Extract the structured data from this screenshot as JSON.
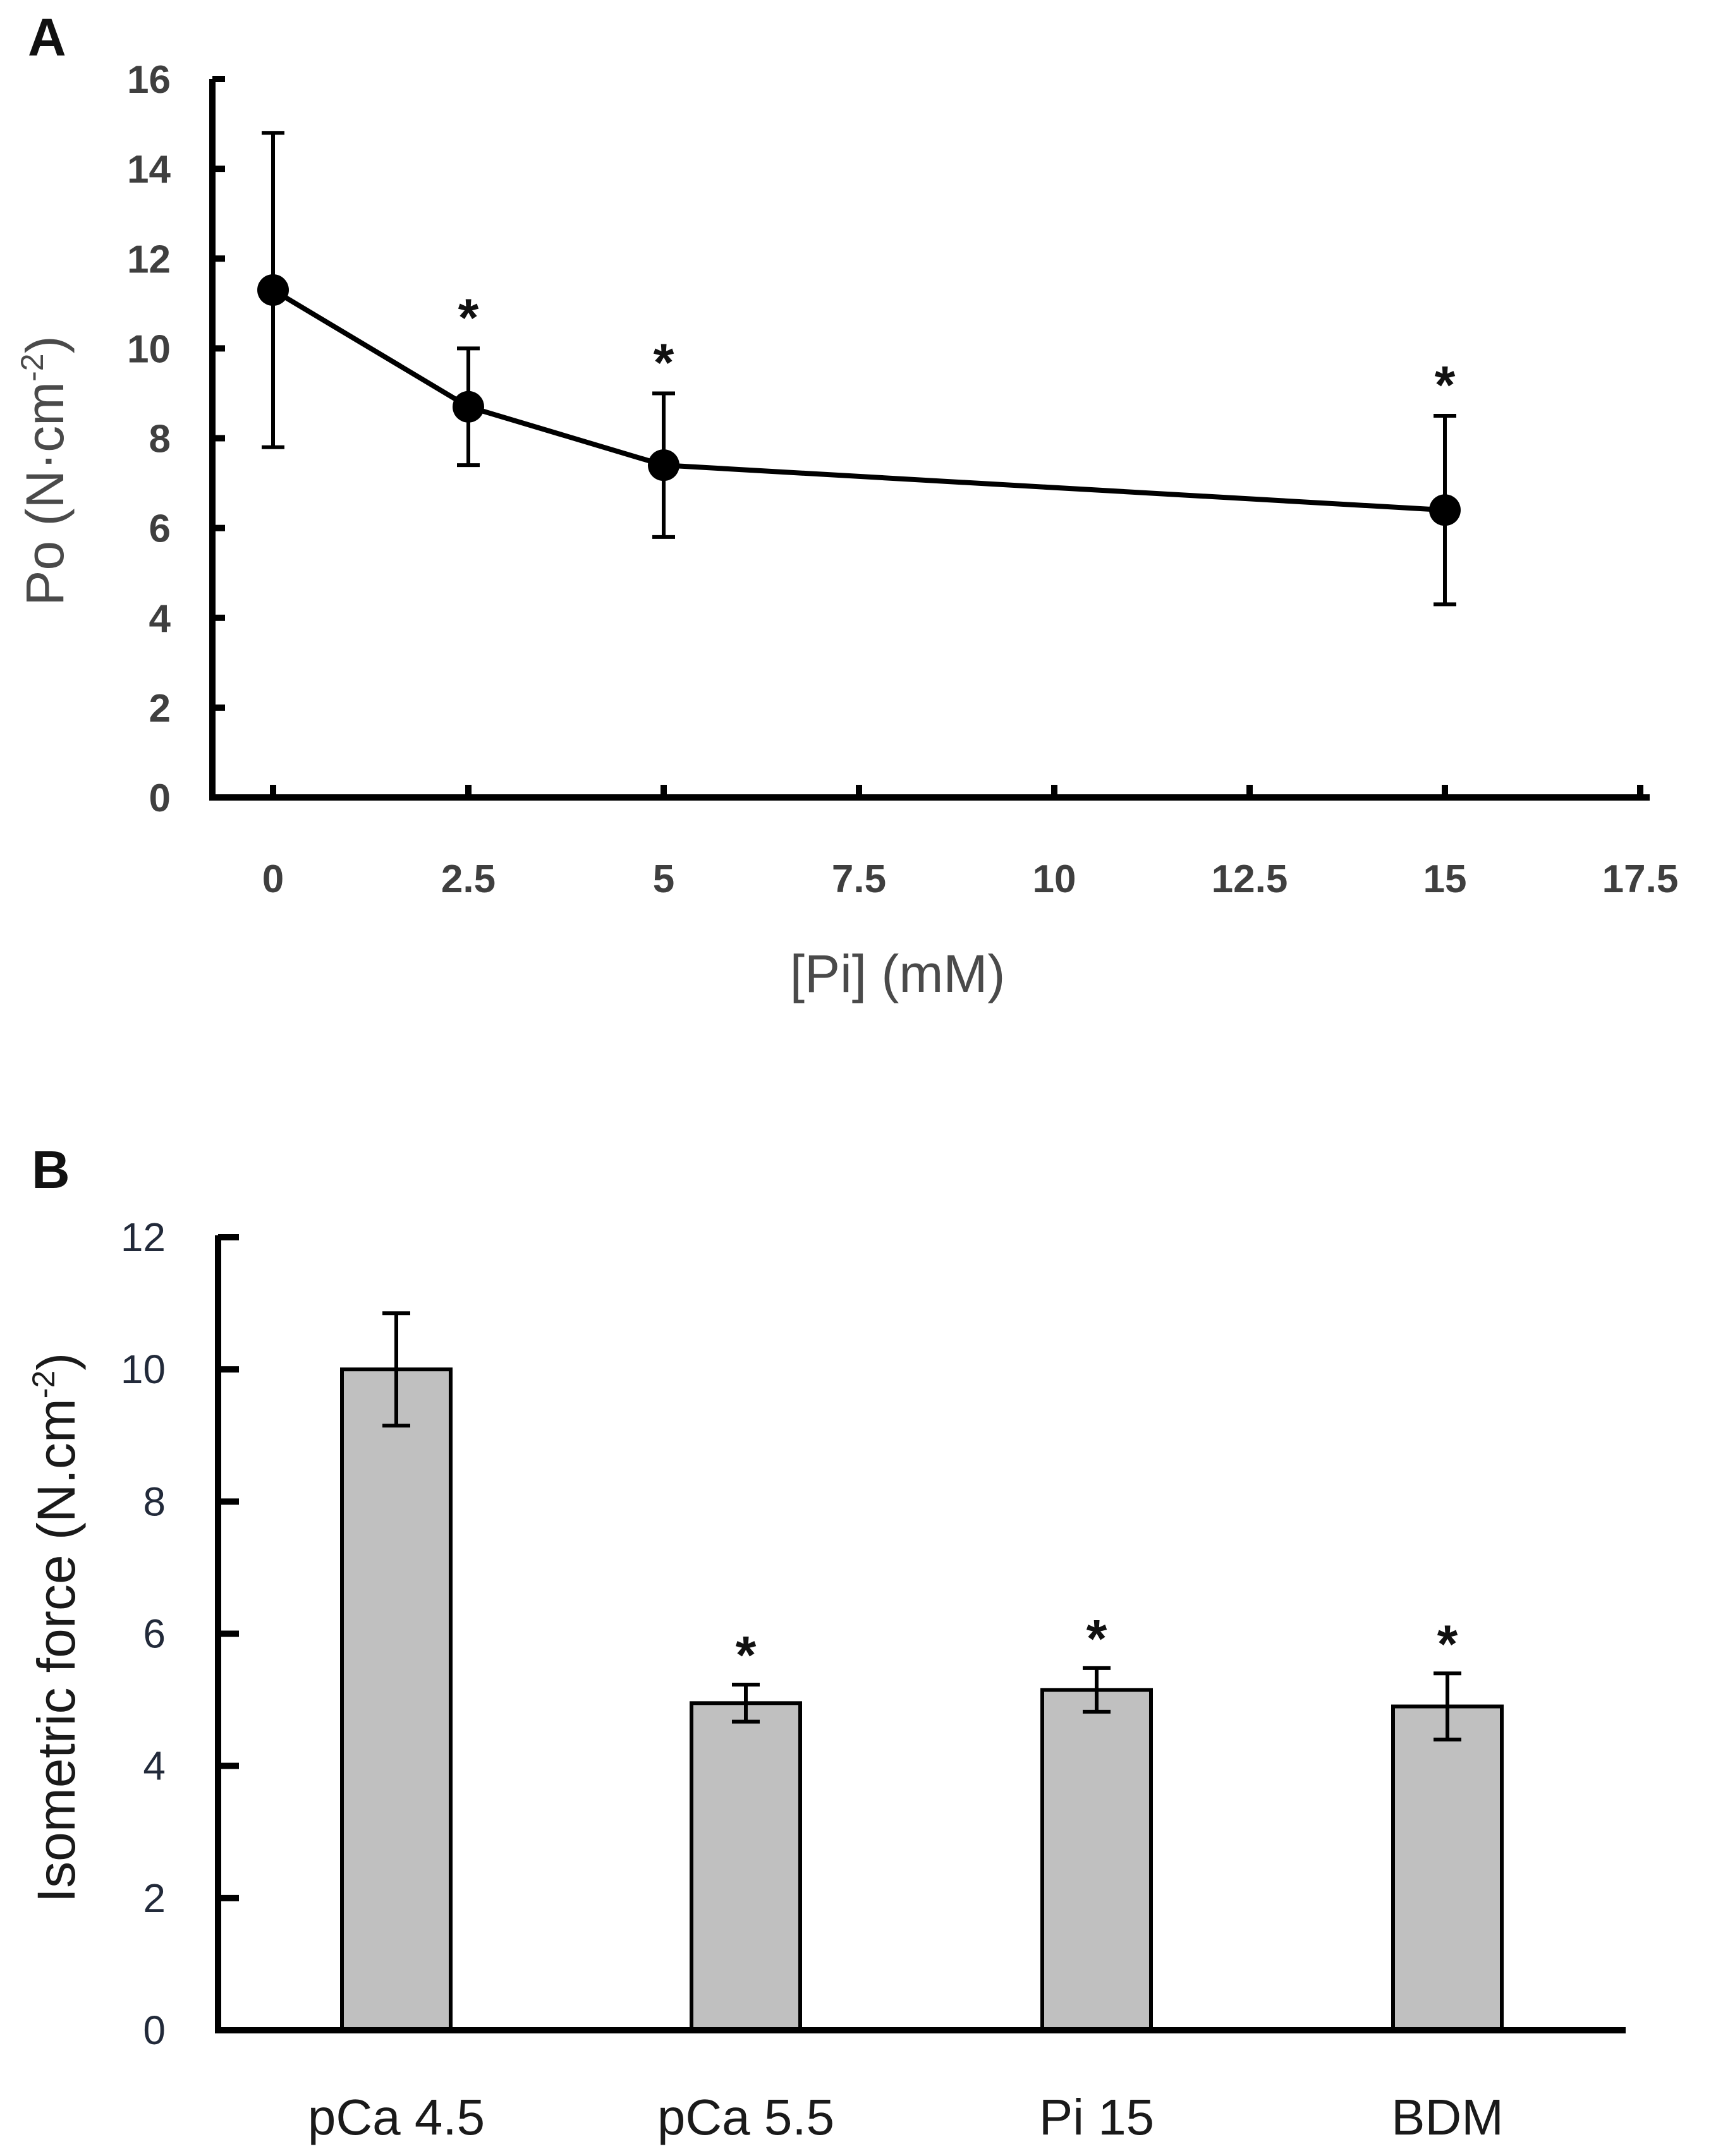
{
  "chart_data": [
    {
      "panel": "A",
      "type": "line",
      "xlabel": "[Pi] (mM)",
      "ylabel_main": "Po (N·cm",
      "ylabel_sup": "-2",
      "ylabel_tail": ")",
      "xlim": [
        0,
        17.5
      ],
      "ylim": [
        0,
        16
      ],
      "x_ticks": [
        "0",
        "2.5",
        "5",
        "7.5",
        "10",
        "12.5",
        "15",
        "17.5"
      ],
      "y_ticks": [
        "0",
        "2",
        "4",
        "6",
        "8",
        "10",
        "12",
        "14",
        "16"
      ],
      "x": [
        0,
        2.5,
        5,
        15
      ],
      "y": [
        11.3,
        8.7,
        7.4,
        6.4
      ],
      "error": [
        3.5,
        1.3,
        1.6,
        2.1
      ],
      "significance": [
        "",
        "*",
        "*",
        "*"
      ],
      "grid": false
    },
    {
      "panel": "B",
      "type": "bar",
      "ylabel_main": "Isometric force (N.cm",
      "ylabel_sup": "-2",
      "ylabel_tail": ")",
      "ylim": [
        0,
        12
      ],
      "y_ticks": [
        "0",
        "2",
        "4",
        "6",
        "8",
        "10",
        "12"
      ],
      "categories": [
        "pCa 4.5",
        "pCa 5.5",
        "Pi 15",
        "BDM"
      ],
      "values": [
        10.0,
        4.95,
        5.15,
        4.9
      ],
      "error": [
        0.85,
        0.28,
        0.33,
        0.5
      ],
      "significance": [
        "",
        "*",
        "*",
        "*"
      ],
      "bar_color": "#c0c0c0",
      "grid": false
    }
  ]
}
